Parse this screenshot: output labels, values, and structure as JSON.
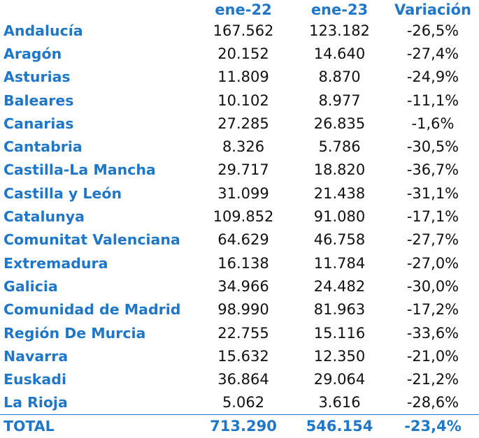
{
  "table": {
    "headers": [
      "",
      "ene-22",
      "ene-23",
      "Variación"
    ],
    "rows": [
      {
        "region": "Andalucía",
        "ene22": "167.562",
        "ene23": "123.182",
        "variacion": "-26,5%"
      },
      {
        "region": "Aragón",
        "ene22": "20.152",
        "ene23": "14.640",
        "variacion": "-27,4%"
      },
      {
        "region": "Asturias",
        "ene22": "11.809",
        "ene23": "8.870",
        "variacion": "-24,9%"
      },
      {
        "region": "Baleares",
        "ene22": "10.102",
        "ene23": "8.977",
        "variacion": "-11,1%"
      },
      {
        "region": "Canarias",
        "ene22": "27.285",
        "ene23": "26.835",
        "variacion": "-1,6%"
      },
      {
        "region": "Cantabria",
        "ene22": "8.326",
        "ene23": "5.786",
        "variacion": "-30,5%"
      },
      {
        "region": "Castilla-La Mancha",
        "ene22": "29.717",
        "ene23": "18.820",
        "variacion": "-36,7%"
      },
      {
        "region": "Castilla y León",
        "ene22": "31.099",
        "ene23": "21.438",
        "variacion": "-31,1%"
      },
      {
        "region": "Catalunya",
        "ene22": "109.852",
        "ene23": "91.080",
        "variacion": "-17,1%"
      },
      {
        "region": "Comunitat Valenciana",
        "ene22": "64.629",
        "ene23": "46.758",
        "variacion": "-27,7%"
      },
      {
        "region": "Extremadura",
        "ene22": "16.138",
        "ene23": "11.784",
        "variacion": "-27,0%"
      },
      {
        "region": "Galicia",
        "ene22": "34.966",
        "ene23": "24.482",
        "variacion": "-30,0%"
      },
      {
        "region": "Comunidad de Madrid",
        "ene22": "98.990",
        "ene23": "81.963",
        "variacion": "-17,2%"
      },
      {
        "region": "Región De Murcia",
        "ene22": "22.755",
        "ene23": "15.116",
        "variacion": "-33,6%"
      },
      {
        "region": "Navarra",
        "ene22": "15.632",
        "ene23": "12.350",
        "variacion": "-21,0%"
      },
      {
        "region": "Euskadi",
        "ene22": "36.864",
        "ene23": "29.064",
        "variacion": "-21,2%"
      },
      {
        "region": "La Rioja",
        "ene22": "5.062",
        "ene23": "3.616",
        "variacion": "-28,6%"
      }
    ],
    "total": {
      "region": "TOTAL",
      "ene22": "713.290",
      "ene23": "546.154",
      "variacion": "-23,4%"
    }
  },
  "colors": {
    "accent": "#1f77c9",
    "text": "#111111"
  }
}
